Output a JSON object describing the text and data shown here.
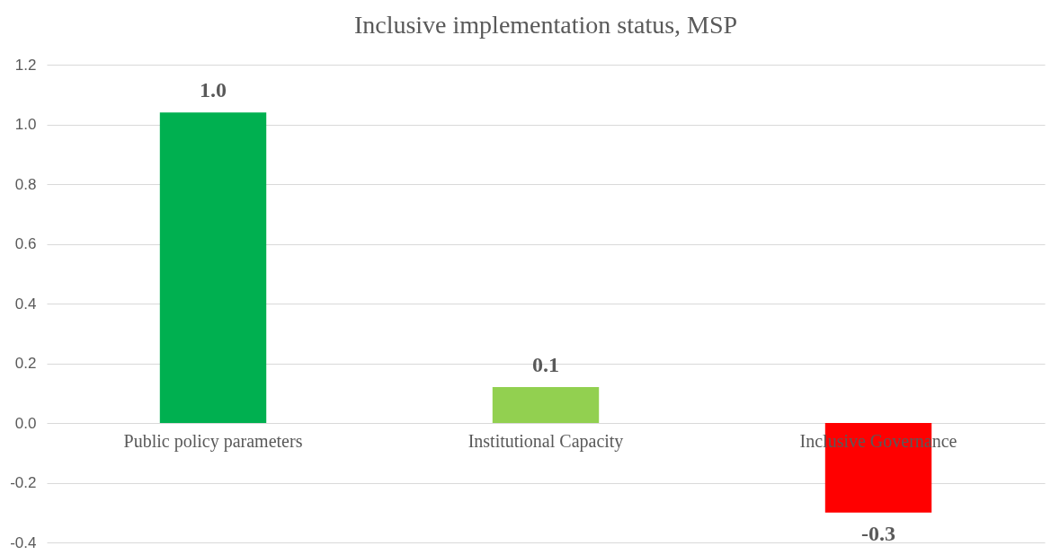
{
  "chart_data": {
    "type": "bar",
    "title": "Inclusive implementation status, MSP",
    "categories": [
      "Public policy parameters",
      "Institutional Capacity",
      "Inclusive Governance"
    ],
    "values": [
      1.04,
      0.12,
      -0.3
    ],
    "colors": [
      "#00b050",
      "#92d050",
      "#ff0000"
    ],
    "value_labels": [
      "1.0",
      "0.1",
      "-0.3"
    ],
    "ylim": [
      -0.4,
      1.2
    ],
    "yticks": [
      {
        "value": -0.4,
        "label": "-0.4"
      },
      {
        "value": -0.2,
        "label": "-0.2"
      },
      {
        "value": 0,
        "label": "0.0"
      },
      {
        "value": 0.2,
        "label": "0.2"
      },
      {
        "value": 0.4,
        "label": "0.4"
      },
      {
        "value": 0.6,
        "label": "0.6"
      },
      {
        "value": 0.8,
        "label": "0.8"
      },
      {
        "value": 1.0,
        "label": "1.0"
      },
      {
        "value": 1.2,
        "label": "1.2"
      }
    ],
    "grid": "y"
  }
}
